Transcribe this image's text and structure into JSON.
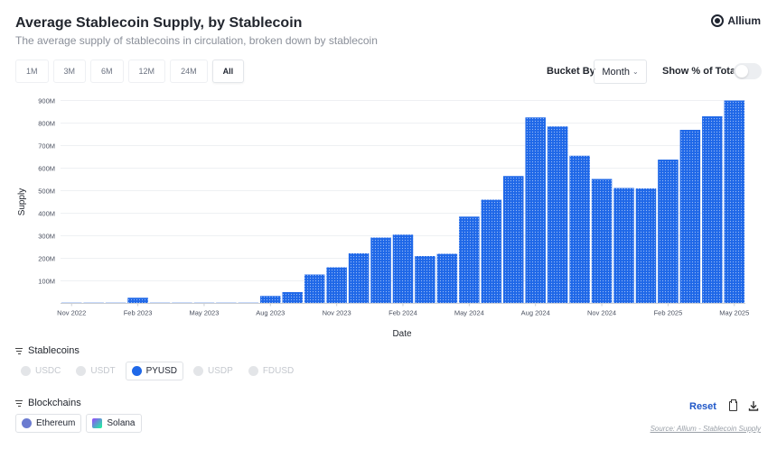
{
  "header": {
    "title": "Average Stablecoin Supply, by Stablecoin",
    "subtitle": "The average supply of stablecoins in circulation, broken down by stablecoin",
    "brand": "Allium"
  },
  "time_ranges": [
    {
      "label": "1M",
      "active": false
    },
    {
      "label": "3M",
      "active": false
    },
    {
      "label": "6M",
      "active": false
    },
    {
      "label": "12M",
      "active": false
    },
    {
      "label": "24M",
      "active": false
    },
    {
      "label": "All",
      "active": true
    }
  ],
  "controls": {
    "bucket_label": "Bucket By",
    "bucket_value": "Month",
    "pct_label": "Show % of Total",
    "pct_enabled": false
  },
  "stablecoins": {
    "label": "Stablecoins",
    "items": [
      {
        "label": "USDC",
        "selected": false
      },
      {
        "label": "USDT",
        "selected": false
      },
      {
        "label": "PYUSD",
        "selected": true
      },
      {
        "label": "USDP",
        "selected": false
      },
      {
        "label": "FDUSD",
        "selected": false
      }
    ]
  },
  "blockchains": {
    "label": "Blockchains",
    "items": [
      {
        "label": "Ethereum",
        "icon": "ethereum-icon"
      },
      {
        "label": "Solana",
        "icon": "solana-icon"
      }
    ]
  },
  "footer": {
    "reset_label": "Reset",
    "source_text": "Source: Allium - Stablecoin Supply"
  },
  "chart_data": {
    "type": "bar",
    "xlabel": "Date",
    "ylabel": "Supply",
    "ylim": [
      0,
      900000000
    ],
    "yticks": [
      100000000,
      200000000,
      300000000,
      400000000,
      500000000,
      600000000,
      700000000,
      800000000,
      900000000
    ],
    "ytick_labels": [
      "100M",
      "200M",
      "300M",
      "400M",
      "500M",
      "600M",
      "700M",
      "800M",
      "900M"
    ],
    "xtick_labels": [
      "Nov 2022",
      "Feb 2023",
      "May 2023",
      "Aug 2023",
      "Nov 2023",
      "Feb 2024",
      "May 2024",
      "Aug 2024",
      "Nov 2024",
      "Feb 2025",
      "May 2025"
    ],
    "xtick_indices": [
      0,
      3,
      6,
      9,
      12,
      15,
      18,
      21,
      24,
      27,
      30
    ],
    "categories": [
      "2022-11",
      "2022-12",
      "2023-01",
      "2023-02",
      "2023-03",
      "2023-04",
      "2023-05",
      "2023-06",
      "2023-07",
      "2023-08",
      "2023-09",
      "2023-10",
      "2023-11",
      "2023-12",
      "2024-01",
      "2024-02",
      "2024-03",
      "2024-04",
      "2024-05",
      "2024-06",
      "2024-07",
      "2024-08",
      "2024-09",
      "2024-10",
      "2024-11",
      "2024-12",
      "2025-01",
      "2025-02",
      "2025-03",
      "2025-04",
      "2025-05"
    ],
    "values": [
      0,
      0,
      0,
      25000000,
      0,
      0,
      0,
      0,
      0,
      33000000,
      50000000,
      128000000,
      160000000,
      222000000,
      292000000,
      305000000,
      210000000,
      220000000,
      385000000,
      460000000,
      565000000,
      825000000,
      785000000,
      655000000,
      552000000,
      512000000,
      510000000,
      638000000,
      770000000,
      830000000,
      900000000
    ],
    "bar_color": "#1f68e8",
    "grid": true,
    "legend": "none"
  }
}
